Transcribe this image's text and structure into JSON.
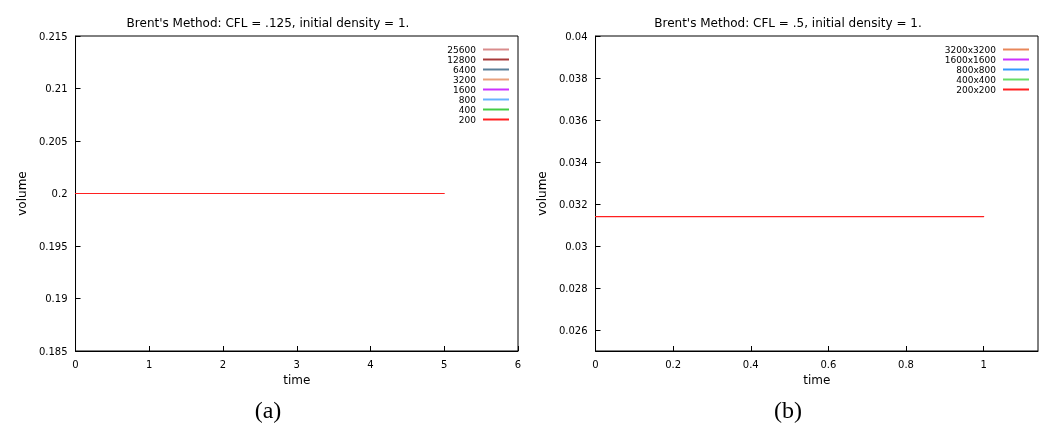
{
  "chart_data": [
    {
      "type": "line",
      "title": "Brent's Method: CFL = .125, initial density = 1.",
      "xlabel": "time",
      "ylabel": "volume",
      "annotations": [
        "(a)"
      ],
      "x": [
        0,
        5
      ],
      "xlim": [
        0,
        6
      ],
      "xticks": [
        0,
        1,
        2,
        3,
        4,
        5,
        6
      ],
      "ylim": [
        0.185,
        0.215
      ],
      "yticks": [
        0.185,
        0.19,
        0.195,
        0.2,
        0.205,
        0.21,
        0.215
      ],
      "grid": false,
      "legend": "top right",
      "marker": "none",
      "line_style": "solid",
      "series": [
        {
          "name": "25600",
          "color": "#d98c8c",
          "values": [
            null,
            null
          ]
        },
        {
          "name": "12800",
          "color": "#a83a3a",
          "values": [
            null,
            null
          ]
        },
        {
          "name": "6400",
          "color": "#5a7f99",
          "values": [
            null,
            null
          ]
        },
        {
          "name": "3200",
          "color": "#e8a07c",
          "values": [
            null,
            null
          ]
        },
        {
          "name": "1600",
          "color": "#cc33ff",
          "values": [
            null,
            null
          ]
        },
        {
          "name": "800",
          "color": "#66b3ff",
          "values": [
            null,
            null
          ]
        },
        {
          "name": "400",
          "color": "#44cc44",
          "values": [
            null,
            null
          ]
        },
        {
          "name": "200",
          "color": "#ff2020",
          "values": [
            0.2,
            0.2
          ]
        }
      ]
    },
    {
      "type": "line",
      "title": "Brent's Method: CFL = .5, initial density = 1.",
      "xlabel": "time",
      "ylabel": "volume",
      "annotations": [
        "(b)"
      ],
      "x": [
        0,
        1
      ],
      "xlim": [
        0,
        1.14
      ],
      "xticks": [
        0,
        0.2,
        0.4,
        0.6,
        0.8,
        1
      ],
      "ylim": [
        0.025,
        0.04
      ],
      "yticks": [
        0.026,
        0.028,
        0.03,
        0.032,
        0.034,
        0.036,
        0.038,
        0.04
      ],
      "grid": false,
      "legend": "top right",
      "marker": "none",
      "line_style": "solid",
      "series": [
        {
          "name": "3200x3200",
          "color": "#e8875a",
          "values": [
            null,
            null
          ]
        },
        {
          "name": "1600x1600",
          "color": "#cc33ff",
          "values": [
            null,
            null
          ]
        },
        {
          "name": "800x800",
          "color": "#3399ff",
          "values": [
            null,
            null
          ]
        },
        {
          "name": "400x400",
          "color": "#66dd66",
          "values": [
            null,
            null
          ]
        },
        {
          "name": "200x200",
          "color": "#ff2020",
          "values": [
            0.0314,
            0.0314
          ]
        }
      ]
    }
  ]
}
